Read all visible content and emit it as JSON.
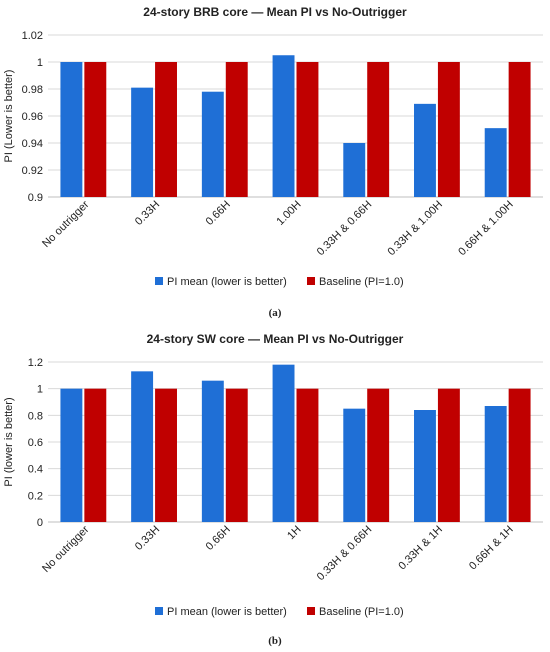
{
  "chart_data": [
    {
      "type": "bar",
      "title": "24-story BRB core — Mean PI vs No-Outrigger",
      "ylabel": "PI (Lower is better)",
      "xlabel": "",
      "categories": [
        "No outrigger",
        "0.33H",
        "0.66H",
        "1.00H",
        "0.33H & 0.66H",
        "0.33H & 1.00H",
        "0.66H & 1.00H"
      ],
      "series": [
        {
          "name": "PI mean (lower is better)",
          "color": "#1f6fd6",
          "values": [
            1.0,
            0.981,
            0.978,
            1.005,
            0.94,
            0.969,
            0.951
          ]
        },
        {
          "name": "Baseline (PI=1.0)",
          "color": "#c00000",
          "values": [
            1.0,
            1.0,
            1.0,
            1.0,
            1.0,
            1.0,
            1.0
          ]
        }
      ],
      "ylim": [
        0.9,
        1.02
      ],
      "yticks": [
        "0.9",
        "0.92",
        "0.94",
        "0.96",
        "0.98",
        "1",
        "1.02"
      ],
      "grid": true,
      "legend": "bottom",
      "caption": "(a)"
    },
    {
      "type": "bar",
      "title": "24-story SW core — Mean PI vs No-Outrigger",
      "ylabel": "PI (lower is better)",
      "xlabel": "",
      "categories": [
        "No outrigger",
        "0.33H",
        "0.66H",
        "1H",
        "0.33H & 0.66H",
        "0.33H & 1H",
        "0.66H & 1H"
      ],
      "series": [
        {
          "name": "PI mean (lower is better)",
          "color": "#1f6fd6",
          "values": [
            1.0,
            1.13,
            1.06,
            1.18,
            0.85,
            0.84,
            0.87
          ]
        },
        {
          "name": "Baseline (PI=1.0)",
          "color": "#c00000",
          "values": [
            1.0,
            1.0,
            1.0,
            1.0,
            1.0,
            1.0,
            1.0
          ]
        }
      ],
      "ylim": [
        0,
        1.2
      ],
      "yticks": [
        "0",
        "0.2",
        "0.4",
        "0.6",
        "0.8",
        "1",
        "1.2"
      ],
      "grid": true,
      "legend": "bottom",
      "caption": "(b)"
    }
  ]
}
